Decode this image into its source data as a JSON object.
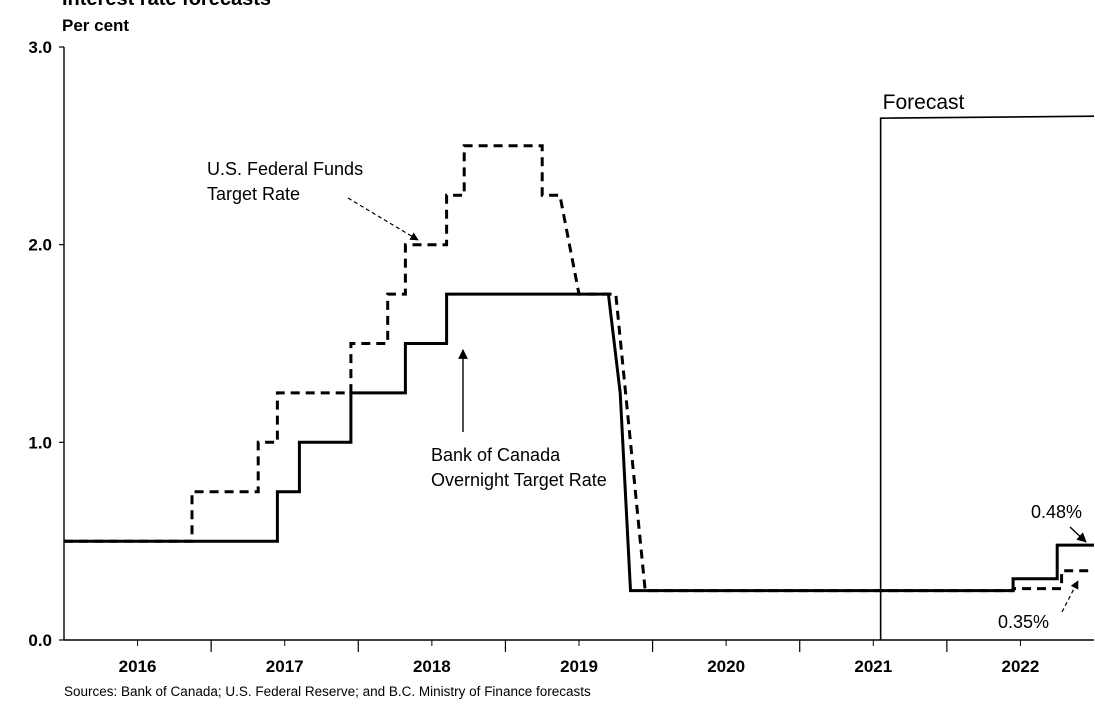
{
  "chart_data": {
    "type": "line",
    "title": "Interest rate forecasts",
    "ylabel": "Per cent",
    "ylim": [
      0,
      3
    ],
    "yticks": [
      "0.0",
      "1.0",
      "2.0",
      "3.0"
    ],
    "x_range": [
      2015.5,
      2022.5
    ],
    "x_tick_labels": [
      "2016",
      "2017",
      "2018",
      "2019",
      "2020",
      "2021",
      "2022"
    ],
    "grid": false,
    "series": [
      {
        "name": "U.S. Federal Funds Target Rate",
        "style": "dashed",
        "color": "#000000",
        "points": [
          [
            2015.5,
            0.5
          ],
          [
            2016.37,
            0.5
          ],
          [
            2016.37,
            0.75
          ],
          [
            2016.82,
            0.75
          ],
          [
            2016.82,
            1.0
          ],
          [
            2016.95,
            1.0
          ],
          [
            2016.95,
            1.25
          ],
          [
            2017.45,
            1.25
          ],
          [
            2017.45,
            1.5
          ],
          [
            2017.7,
            1.5
          ],
          [
            2017.7,
            1.75
          ],
          [
            2017.82,
            1.75
          ],
          [
            2017.82,
            2.0
          ],
          [
            2018.1,
            2.0
          ],
          [
            2018.1,
            2.25
          ],
          [
            2018.22,
            2.25
          ],
          [
            2018.22,
            2.5
          ],
          [
            2018.75,
            2.5
          ],
          [
            2018.75,
            2.25
          ],
          [
            2018.87,
            2.25
          ],
          [
            2019.0,
            1.75
          ],
          [
            2019.25,
            1.75
          ],
          [
            2019.45,
            0.25
          ],
          [
            2021.95,
            0.25
          ],
          [
            2021.95,
            0.26
          ],
          [
            2022.28,
            0.26
          ],
          [
            2022.28,
            0.35
          ],
          [
            2022.5,
            0.35
          ]
        ]
      },
      {
        "name": "Bank of Canada Overnight Target Rate",
        "style": "solid",
        "color": "#000000",
        "points": [
          [
            2015.5,
            0.5
          ],
          [
            2016.95,
            0.5
          ],
          [
            2016.95,
            0.75
          ],
          [
            2017.1,
            0.75
          ],
          [
            2017.1,
            1.0
          ],
          [
            2017.45,
            1.0
          ],
          [
            2017.45,
            1.25
          ],
          [
            2017.82,
            1.25
          ],
          [
            2017.82,
            1.5
          ],
          [
            2018.1,
            1.5
          ],
          [
            2018.1,
            1.75
          ],
          [
            2019.2,
            1.75
          ],
          [
            2019.28,
            1.25
          ],
          [
            2019.35,
            0.25
          ],
          [
            2021.95,
            0.25
          ],
          [
            2021.95,
            0.31
          ],
          [
            2022.25,
            0.31
          ],
          [
            2022.25,
            0.48
          ],
          [
            2022.5,
            0.48
          ]
        ]
      }
    ],
    "forecast_start": 2021.05,
    "annotations": {
      "forecast_label": "Forecast",
      "fed_label_1": "U.S. Federal Funds",
      "fed_label_2": "Target Rate",
      "boc_label_1": "Bank of Canada",
      "boc_label_2": "Overnight Target Rate",
      "boc_end_value": "0.48%",
      "fed_end_value": "0.35%"
    },
    "source": "Sources: Bank of Canada; U.S. Federal Reserve; and B.C. Ministry of Finance forecasts"
  }
}
